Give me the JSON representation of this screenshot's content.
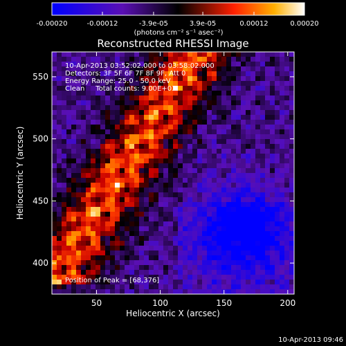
{
  "chart_data": {
    "type": "heatmap",
    "title": "Reconstructed RHESSI Image",
    "xlabel": "Heliocentric X (arcsec)",
    "ylabel": "Heliocentric Y (arcsec)",
    "xlim": [
      15,
      205
    ],
    "ylim": [
      375,
      570
    ],
    "xticks": [
      50,
      100,
      150,
      200
    ],
    "yticks": [
      400,
      450,
      500,
      550
    ],
    "colorbar": {
      "min": -0.0002,
      "max": 0.0002,
      "ticks": [
        -0.0002,
        -0.00012,
        -3.9e-05,
        3.9e-05,
        0.00012,
        0.0002
      ],
      "tick_labels": [
        "-0.00020",
        "-0.00012",
        "-3.9e-05",
        "3.9e-05",
        "0.00012",
        "0.00020"
      ],
      "unit_label": "(photons cm⁻² s⁻¹ asec⁻²)"
    },
    "annotations": {
      "time_range": "10-Apr-2013 03:52:02.000 to 03:58:02.000",
      "detectors": "Detectors: 3F 5F 6F 7F 8F 9F, Att 0",
      "energy_range": "Energy Range: 25.0 - 50.0 keV",
      "method": "Clean     Total counts: 9.00E+03",
      "peak": "Position of Peak = [68,376]"
    },
    "timestamp": "10-Apr-2013 09:46"
  }
}
